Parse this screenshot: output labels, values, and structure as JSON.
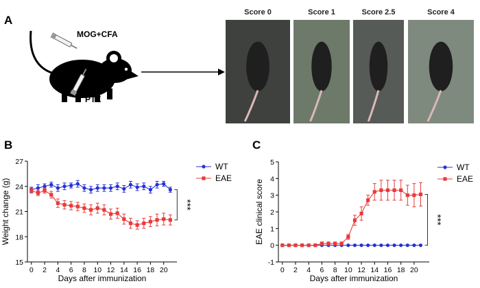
{
  "panels": {
    "a": "A",
    "b": "B",
    "c": "C"
  },
  "schematic": {
    "injection_top": "MOG+CFA",
    "injection_bottom": "PTX",
    "mouse_icon": "mouse-silhouette-icon",
    "syringe_icon": "syringe-icon",
    "arrow_icon": "right-arrow-icon"
  },
  "photos": [
    {
      "label": "Score 0",
      "bg": "#3f413e"
    },
    {
      "label": "Score 1",
      "bg": "#6d7a6a"
    },
    {
      "label": "Score 2.5",
      "bg": "#575b57"
    },
    {
      "label": "Score 4",
      "bg": "#7f8a7f"
    }
  ],
  "chart_data": [
    {
      "id": "weight",
      "type": "line",
      "xlabel": "Days after immunization",
      "ylabel": "Weight change (g)",
      "x": [
        0,
        1,
        2,
        3,
        4,
        5,
        6,
        7,
        8,
        9,
        10,
        11,
        12,
        13,
        14,
        15,
        16,
        17,
        18,
        19,
        20,
        21
      ],
      "xticks": [
        0,
        2,
        4,
        6,
        8,
        10,
        12,
        14,
        16,
        18,
        20
      ],
      "ylim": [
        15,
        27
      ],
      "yticks": [
        15,
        18,
        21,
        24,
        27
      ],
      "series": [
        {
          "name": "WT",
          "color": "#2430d8",
          "marker": "circle",
          "values": [
            23.6,
            23.8,
            24.0,
            24.2,
            23.8,
            24.0,
            24.1,
            24.3,
            23.8,
            23.6,
            23.8,
            23.8,
            23.8,
            24.0,
            23.7,
            24.2,
            23.9,
            24.0,
            23.6,
            24.2,
            24.3,
            23.6
          ],
          "errors": [
            0.3,
            0.4,
            0.3,
            0.3,
            0.4,
            0.4,
            0.3,
            0.4,
            0.4,
            0.4,
            0.4,
            0.4,
            0.4,
            0.4,
            0.4,
            0.4,
            0.4,
            0.4,
            0.4,
            0.4,
            0.3,
            0.3
          ]
        },
        {
          "name": "EAE",
          "color": "#e83a3a",
          "marker": "square",
          "values": [
            23.5,
            23.2,
            23.5,
            23.0,
            22.0,
            21.8,
            21.7,
            21.6,
            21.4,
            21.2,
            21.4,
            21.2,
            20.7,
            20.8,
            20.1,
            19.6,
            19.4,
            19.6,
            19.8,
            20.0,
            20.1,
            20.0
          ],
          "errors": [
            0.3,
            0.3,
            0.3,
            0.4,
            0.5,
            0.5,
            0.5,
            0.5,
            0.5,
            0.6,
            0.6,
            0.6,
            0.6,
            0.6,
            0.6,
            0.6,
            0.5,
            0.6,
            0.6,
            0.7,
            0.7,
            0.6
          ]
        }
      ],
      "legend": [
        "WT",
        "EAE"
      ],
      "significance": "***"
    },
    {
      "id": "score",
      "type": "line",
      "xlabel": "Days after immunization",
      "ylabel": "EAE clinical score",
      "x": [
        0,
        1,
        2,
        3,
        4,
        5,
        6,
        7,
        8,
        9,
        10,
        11,
        12,
        13,
        14,
        15,
        16,
        17,
        18,
        19,
        20,
        21
      ],
      "xticks": [
        0,
        2,
        4,
        6,
        8,
        10,
        12,
        14,
        16,
        18,
        20
      ],
      "ylim": [
        -1,
        5
      ],
      "yticks": [
        -1,
        0,
        1,
        2,
        3,
        4,
        5
      ],
      "series": [
        {
          "name": "WT",
          "color": "#2430d8",
          "marker": "circle",
          "values": [
            0,
            0,
            0,
            0,
            0,
            0,
            0,
            0,
            0,
            0,
            0,
            0,
            0,
            0,
            0,
            0,
            0,
            0,
            0,
            0,
            0,
            0
          ],
          "errors": [
            0,
            0,
            0,
            0,
            0,
            0,
            0,
            0,
            0,
            0,
            0,
            0,
            0,
            0,
            0,
            0,
            0,
            0,
            0,
            0,
            0,
            0
          ]
        },
        {
          "name": "EAE",
          "color": "#e83a3a",
          "marker": "square",
          "values": [
            0,
            0,
            0,
            0,
            0,
            0,
            0.1,
            0.1,
            0.1,
            0.1,
            0.5,
            1.5,
            1.9,
            2.7,
            3.2,
            3.3,
            3.3,
            3.3,
            3.3,
            3.0,
            3.0,
            3.05
          ],
          "errors": [
            0,
            0,
            0,
            0,
            0,
            0,
            0.1,
            0.1,
            0.1,
            0.1,
            0.15,
            0.3,
            0.4,
            0.3,
            0.5,
            0.6,
            0.6,
            0.6,
            0.6,
            0.6,
            0.7,
            0.7
          ]
        }
      ],
      "legend": [
        "WT",
        "EAE"
      ],
      "significance": "***"
    }
  ]
}
